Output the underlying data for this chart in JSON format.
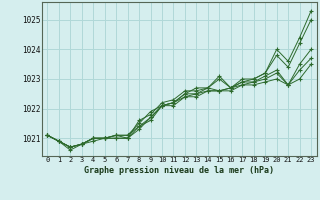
{
  "x": [
    0,
    1,
    2,
    3,
    4,
    5,
    6,
    7,
    8,
    9,
    10,
    11,
    12,
    13,
    14,
    15,
    16,
    17,
    18,
    19,
    20,
    21,
    22,
    23
  ],
  "line1": [
    1021.1,
    1020.9,
    1020.7,
    1020.8,
    1021.0,
    1021.0,
    1021.1,
    1021.1,
    1021.5,
    1021.9,
    1022.1,
    1022.2,
    1022.5,
    1022.7,
    1022.7,
    1023.1,
    1022.7,
    1023.0,
    1023.0,
    1023.2,
    1024.0,
    1023.6,
    1024.4,
    1025.3
  ],
  "line2": [
    1021.1,
    1020.9,
    1020.7,
    1020.8,
    1021.0,
    1021.0,
    1021.1,
    1021.0,
    1021.4,
    1021.6,
    1022.1,
    1022.2,
    1022.5,
    1022.5,
    1022.7,
    1023.0,
    1022.7,
    1022.9,
    1023.0,
    1023.2,
    1023.8,
    1023.4,
    1024.2,
    1025.0
  ],
  "line3": [
    1021.1,
    1020.9,
    1020.7,
    1020.8,
    1021.0,
    1021.0,
    1021.0,
    1021.0,
    1021.6,
    1021.8,
    1022.2,
    1022.3,
    1022.6,
    1022.6,
    1022.7,
    1022.6,
    1022.7,
    1022.9,
    1022.9,
    1023.1,
    1023.3,
    1022.8,
    1023.5,
    1024.0
  ],
  "line4": [
    1021.1,
    1020.9,
    1020.7,
    1020.8,
    1021.0,
    1021.0,
    1021.0,
    1021.0,
    1021.3,
    1021.7,
    1022.1,
    1022.1,
    1022.4,
    1022.5,
    1022.6,
    1022.6,
    1022.7,
    1022.8,
    1022.9,
    1023.0,
    1023.2,
    1022.8,
    1023.3,
    1023.7
  ],
  "line5": [
    1021.1,
    1020.9,
    1020.6,
    1020.8,
    1020.9,
    1021.0,
    1021.1,
    1021.1,
    1021.4,
    1021.7,
    1022.1,
    1022.2,
    1022.4,
    1022.4,
    1022.6,
    1022.6,
    1022.6,
    1022.8,
    1022.8,
    1022.9,
    1023.0,
    1022.8,
    1023.0,
    1023.5
  ],
  "line_color": "#2d6a2d",
  "bg_color": "#d5eeee",
  "grid_color": "#b0d8d8",
  "xlabel": "Graphe pression niveau de la mer (hPa)",
  "ylim": [
    1020.4,
    1025.6
  ],
  "yticks": [
    1021,
    1022,
    1023,
    1024,
    1025
  ],
  "xticks": [
    0,
    1,
    2,
    3,
    4,
    5,
    6,
    7,
    8,
    9,
    10,
    11,
    12,
    13,
    14,
    15,
    16,
    17,
    18,
    19,
    20,
    21,
    22,
    23
  ]
}
